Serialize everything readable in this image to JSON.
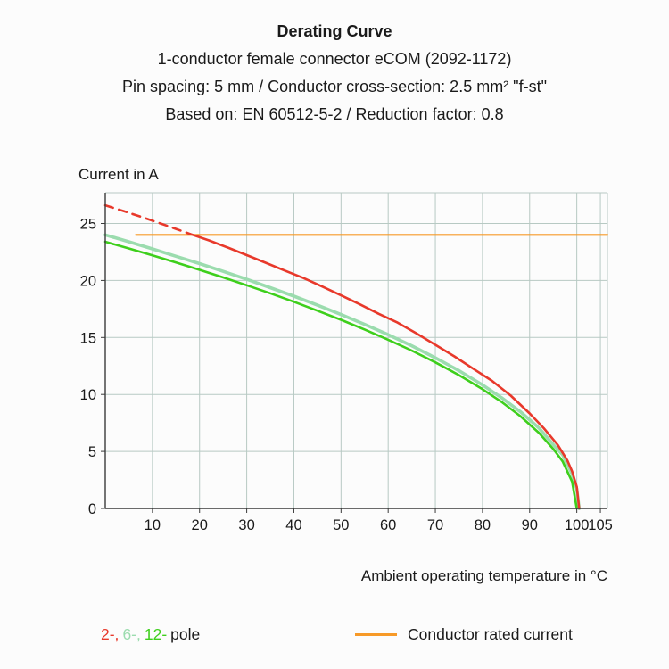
{
  "header": {
    "title": "Derating Curve",
    "subtitle_lines": [
      "1-conductor female connector eCOM (2092-1172)",
      "Pin spacing: 5 mm / Conductor cross-section: 2.5 mm² \"f-st\"",
      "Based on: EN 60512-5-2 / Reduction factor: 0.8"
    ]
  },
  "chart_data": {
    "type": "line",
    "title": "Derating Curve",
    "ylabel": "Current in A",
    "xlabel": "Ambient operating temperature in °C",
    "xlim": [
      0,
      106.5
    ],
    "ylim": [
      0,
      27.7
    ],
    "x_ticks": [
      10,
      20,
      30,
      40,
      50,
      60,
      70,
      80,
      90,
      100,
      105
    ],
    "y_ticks": [
      0,
      5,
      10,
      15,
      20,
      25
    ],
    "grid": true,
    "grid_color": "#b7c9c3",
    "axis_color": "#3a3a3a",
    "series": [
      {
        "name": "Conductor rated current",
        "color": "#f79a28",
        "width": 2.2,
        "points": [
          [
            6.5,
            24
          ],
          [
            106.5,
            24
          ]
        ]
      },
      {
        "name": "6-pole",
        "color": "#9bdcae",
        "width": 3.6,
        "points": [
          [
            0,
            24
          ],
          [
            5,
            23.4
          ],
          [
            10,
            22.77
          ],
          [
            15,
            22.12
          ],
          [
            20,
            21.48
          ],
          [
            25,
            20.8
          ],
          [
            30,
            20.1
          ],
          [
            35,
            19.37
          ],
          [
            40,
            18.62
          ],
          [
            45,
            17.83
          ],
          [
            50,
            17.01
          ],
          [
            55,
            16.15
          ],
          [
            60,
            15.24
          ],
          [
            65,
            14.27
          ],
          [
            70,
            13.22
          ],
          [
            75,
            12.09
          ],
          [
            80,
            10.84
          ],
          [
            84,
            9.73
          ],
          [
            88,
            8.5
          ],
          [
            92,
            7.05
          ],
          [
            95,
            5.61
          ],
          [
            97,
            4.7
          ],
          [
            99,
            3.0
          ],
          [
            100,
            1.7
          ],
          [
            100.5,
            0
          ]
        ]
      },
      {
        "name": "12-pole",
        "color": "#3ecf1c",
        "width": 2.6,
        "points": [
          [
            0,
            23.4
          ],
          [
            5,
            22.81
          ],
          [
            10,
            22.2
          ],
          [
            15,
            21.58
          ],
          [
            20,
            20.93
          ],
          [
            25,
            20.27
          ],
          [
            30,
            19.58
          ],
          [
            35,
            18.87
          ],
          [
            40,
            18.13
          ],
          [
            45,
            17.35
          ],
          [
            50,
            16.55
          ],
          [
            55,
            15.7
          ],
          [
            60,
            14.8
          ],
          [
            65,
            13.85
          ],
          [
            70,
            12.82
          ],
          [
            75,
            11.7
          ],
          [
            80,
            10.46
          ],
          [
            84,
            9.36
          ],
          [
            88,
            8.11
          ],
          [
            92,
            6.62
          ],
          [
            95,
            5.23
          ],
          [
            97,
            4.12
          ],
          [
            99,
            2.34
          ],
          [
            100,
            0
          ]
        ]
      },
      {
        "name": "2-pole",
        "color": "#e8392b",
        "width": 2.6,
        "points": [
          [
            18,
            24.08
          ],
          [
            22,
            23.51
          ],
          [
            26,
            22.89
          ],
          [
            30,
            22.22
          ],
          [
            34,
            21.56
          ],
          [
            38,
            20.88
          ],
          [
            42,
            20.22
          ],
          [
            46,
            19.47
          ],
          [
            50,
            18.69
          ],
          [
            54,
            17.9
          ],
          [
            58,
            17.07
          ],
          [
            62,
            16.3
          ],
          [
            66,
            15.35
          ],
          [
            70,
            14.36
          ],
          [
            74,
            13.35
          ],
          [
            78,
            12.27
          ],
          [
            82,
            11.2
          ],
          [
            86,
            9.9
          ],
          [
            90,
            8.33
          ],
          [
            93,
            7.04
          ],
          [
            96,
            5.55
          ],
          [
            98,
            4.2
          ],
          [
            99,
            3.25
          ],
          [
            100,
            1.9
          ],
          [
            100.5,
            0
          ]
        ]
      },
      {
        "name": "2-pole-dashed",
        "color": "#e8392b",
        "width": 2.6,
        "dash": "9 7",
        "points": [
          [
            0,
            26.6
          ],
          [
            4,
            26.07
          ],
          [
            8,
            25.53
          ],
          [
            12,
            24.96
          ],
          [
            15,
            24.52
          ],
          [
            18,
            24.08
          ]
        ]
      }
    ]
  },
  "legend": {
    "poles": [
      {
        "label": "2-,",
        "color": "#e8392b"
      },
      {
        "label": "6-,",
        "color": "#9bdcae"
      },
      {
        "label": "12-",
        "color": "#3ecf1c"
      }
    ],
    "pole_word": "pole",
    "rated_label": "Conductor rated current",
    "rated_color": "#f79a28"
  }
}
